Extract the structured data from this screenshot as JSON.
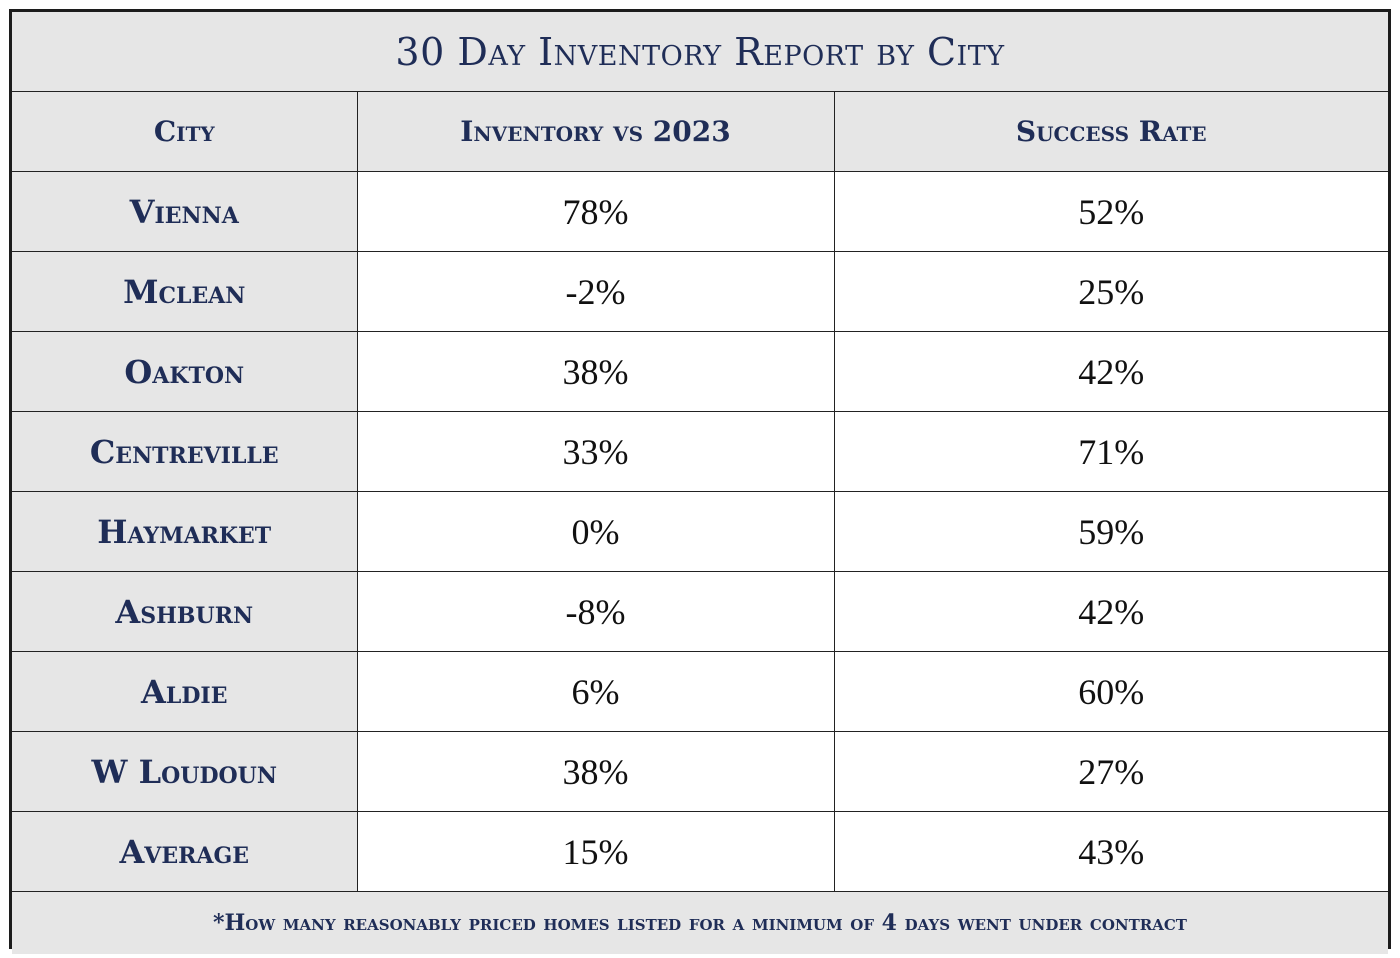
{
  "chart_data": {
    "type": "table",
    "title": "30 Day Inventory Report by City",
    "columns": [
      "City",
      "Inventory vs 2023",
      "Success Rate"
    ],
    "rows": [
      {
        "city": "Vienna",
        "inventory_vs_2023": "78%",
        "success_rate": "52%"
      },
      {
        "city": "Mclean",
        "inventory_vs_2023": "-2%",
        "success_rate": "25%"
      },
      {
        "city": "Oakton",
        "inventory_vs_2023": "38%",
        "success_rate": "42%"
      },
      {
        "city": "Centreville",
        "inventory_vs_2023": "33%",
        "success_rate": "71%"
      },
      {
        "city": "Haymarket",
        "inventory_vs_2023": "0%",
        "success_rate": "59%"
      },
      {
        "city": "Ashburn",
        "inventory_vs_2023": "-8%",
        "success_rate": "42%"
      },
      {
        "city": "Aldie",
        "inventory_vs_2023": "6%",
        "success_rate": "60%"
      },
      {
        "city": "W Loudoun",
        "inventory_vs_2023": "38%",
        "success_rate": "27%"
      },
      {
        "city": "Average",
        "inventory_vs_2023": "15%",
        "success_rate": "43%"
      }
    ],
    "footnote": "*How many reasonably priced homes listed for a minimum of 4 days went under contract"
  },
  "colors": {
    "header_background": "#e6e6e6",
    "header_text": "#1f2d57",
    "value_text": "#111111",
    "border": "#222222"
  }
}
